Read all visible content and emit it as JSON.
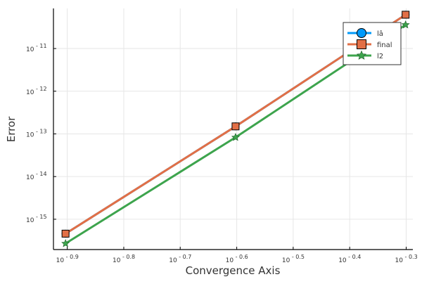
{
  "chart_data": {
    "type": "line",
    "title": "",
    "xlabel": "Convergence Axis",
    "ylabel": "Error",
    "xscale": "log10",
    "yscale": "log10",
    "xlim": [
      0.119,
      0.515
    ],
    "ylim": [
      1.95e-16,
      8.7e-11
    ],
    "x_ticks": [
      {
        "exp": "- 0.9",
        "value": 0.1259
      },
      {
        "exp": "- 0.8",
        "value": 0.1585
      },
      {
        "exp": "- 0.7",
        "value": 0.1995
      },
      {
        "exp": "- 0.6",
        "value": 0.2512
      },
      {
        "exp": "- 0.5",
        "value": 0.3162
      },
      {
        "exp": "- 0.4",
        "value": 0.3981
      },
      {
        "exp": "- 0.3",
        "value": 0.5012
      }
    ],
    "y_ticks": [
      {
        "exp": "- 11",
        "value": 1e-11
      },
      {
        "exp": "- 12",
        "value": 1e-12
      },
      {
        "exp": "- 13",
        "value": 1e-13
      },
      {
        "exp": "- 14",
        "value": 1e-14
      },
      {
        "exp": "- 15",
        "value": 1e-15
      }
    ],
    "tick_base": "10",
    "grid": true,
    "legend_position": "top-right",
    "x": [
      0.125,
      0.25,
      0.5
    ],
    "series": [
      {
        "name": "lâ",
        "values": [
          4.6e-16,
          1.5e-13,
          6.2e-11
        ],
        "color": "#009AFA",
        "marker": "circle"
      },
      {
        "name": "final",
        "values": [
          4.6e-16,
          1.5e-13,
          6.2e-11
        ],
        "color": "#E26F46",
        "marker": "square"
      },
      {
        "name": "l2",
        "values": [
          2.7e-16,
          8.3e-14,
          3.6e-11
        ],
        "color": "#3DA44D",
        "marker": "star"
      }
    ]
  }
}
